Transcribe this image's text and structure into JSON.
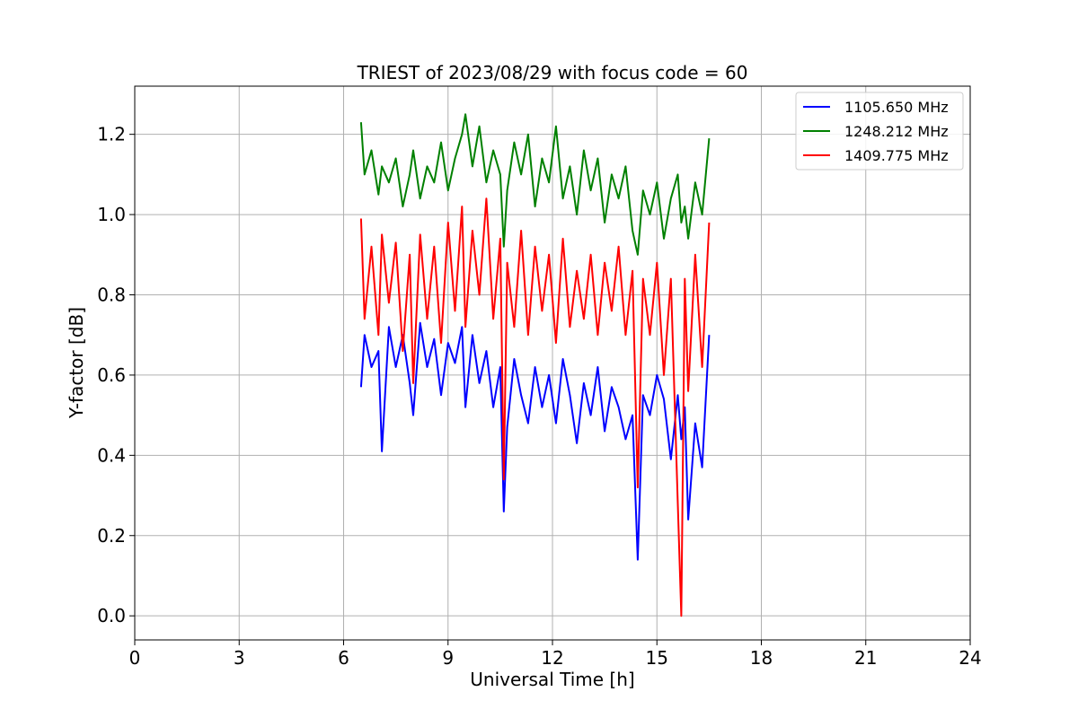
{
  "chart_data": {
    "type": "line",
    "title": "TRIEST of 2023/08/29 with focus code = 60",
    "xlabel": "Universal Time [h]",
    "ylabel": "Y-factor [dB]",
    "xlim": [
      0,
      24
    ],
    "ylim": [
      -0.06,
      1.32
    ],
    "xticks": [
      0,
      3,
      6,
      9,
      12,
      15,
      18,
      21,
      24
    ],
    "xtick_labels": [
      "0",
      "3",
      "6",
      "9",
      "12",
      "15",
      "18",
      "21",
      "24"
    ],
    "yticks": [
      0.0,
      0.2,
      0.4,
      0.6,
      0.8,
      1.0,
      1.2
    ],
    "ytick_labels": [
      "0.0",
      "0.2",
      "0.4",
      "0.6",
      "0.8",
      "1.0",
      "1.2"
    ],
    "grid": true,
    "legend_position": "top-right",
    "series": [
      {
        "name": "1105.650 MHz",
        "color": "#0000ff",
        "x": [
          6.5,
          6.6,
          6.8,
          7.0,
          7.1,
          7.3,
          7.5,
          7.7,
          7.9,
          8.0,
          8.2,
          8.4,
          8.6,
          8.8,
          9.0,
          9.2,
          9.4,
          9.5,
          9.7,
          9.9,
          10.1,
          10.3,
          10.5,
          10.6,
          10.7,
          10.9,
          11.1,
          11.3,
          11.5,
          11.7,
          11.9,
          12.1,
          12.3,
          12.5,
          12.7,
          12.9,
          13.1,
          13.3,
          13.5,
          13.7,
          13.9,
          14.1,
          14.3,
          14.45,
          14.6,
          14.8,
          15.0,
          15.2,
          15.4,
          15.6,
          15.7,
          15.8,
          15.9,
          16.1,
          16.3,
          16.5
        ],
        "y": [
          0.57,
          0.7,
          0.62,
          0.66,
          0.41,
          0.72,
          0.62,
          0.7,
          0.58,
          0.5,
          0.73,
          0.62,
          0.69,
          0.55,
          0.68,
          0.63,
          0.72,
          0.52,
          0.7,
          0.58,
          0.66,
          0.52,
          0.62,
          0.26,
          0.47,
          0.64,
          0.55,
          0.48,
          0.62,
          0.52,
          0.6,
          0.48,
          0.64,
          0.55,
          0.43,
          0.58,
          0.5,
          0.62,
          0.46,
          0.57,
          0.52,
          0.44,
          0.5,
          0.14,
          0.55,
          0.5,
          0.6,
          0.54,
          0.39,
          0.55,
          0.44,
          0.52,
          0.24,
          0.48,
          0.37,
          0.7
        ]
      },
      {
        "name": "1248.212 MHz",
        "color": "#008000",
        "x": [
          6.5,
          6.6,
          6.8,
          7.0,
          7.1,
          7.3,
          7.5,
          7.7,
          7.9,
          8.0,
          8.2,
          8.4,
          8.6,
          8.8,
          9.0,
          9.2,
          9.4,
          9.5,
          9.7,
          9.9,
          10.1,
          10.3,
          10.5,
          10.6,
          10.7,
          10.9,
          11.1,
          11.3,
          11.5,
          11.7,
          11.9,
          12.1,
          12.3,
          12.5,
          12.7,
          12.9,
          13.1,
          13.3,
          13.5,
          13.7,
          13.9,
          14.1,
          14.3,
          14.45,
          14.6,
          14.8,
          15.0,
          15.2,
          15.4,
          15.6,
          15.7,
          15.8,
          15.9,
          16.1,
          16.3,
          16.5
        ],
        "y": [
          1.23,
          1.1,
          1.16,
          1.05,
          1.12,
          1.08,
          1.14,
          1.02,
          1.1,
          1.16,
          1.04,
          1.12,
          1.08,
          1.18,
          1.06,
          1.14,
          1.2,
          1.25,
          1.12,
          1.22,
          1.08,
          1.16,
          1.1,
          0.92,
          1.06,
          1.18,
          1.1,
          1.2,
          1.02,
          1.14,
          1.08,
          1.22,
          1.04,
          1.12,
          1.0,
          1.16,
          1.06,
          1.14,
          0.98,
          1.1,
          1.04,
          1.12,
          0.96,
          0.9,
          1.06,
          1.0,
          1.08,
          0.94,
          1.04,
          1.1,
          0.98,
          1.02,
          0.94,
          1.08,
          1.0,
          1.19
        ]
      },
      {
        "name": "1409.775 MHz",
        "color": "#ff0000",
        "x": [
          6.5,
          6.6,
          6.8,
          7.0,
          7.1,
          7.3,
          7.5,
          7.7,
          7.9,
          8.0,
          8.2,
          8.4,
          8.6,
          8.8,
          9.0,
          9.2,
          9.4,
          9.5,
          9.7,
          9.9,
          10.1,
          10.3,
          10.5,
          10.6,
          10.7,
          10.9,
          11.1,
          11.3,
          11.5,
          11.7,
          11.9,
          12.1,
          12.3,
          12.5,
          12.7,
          12.9,
          13.1,
          13.3,
          13.5,
          13.7,
          13.9,
          14.1,
          14.3,
          14.45,
          14.6,
          14.8,
          15.0,
          15.2,
          15.4,
          15.6,
          15.7,
          15.8,
          15.9,
          16.1,
          16.3,
          16.5
        ],
        "y": [
          0.99,
          0.74,
          0.92,
          0.7,
          0.95,
          0.78,
          0.93,
          0.66,
          0.9,
          0.58,
          0.95,
          0.74,
          0.92,
          0.68,
          0.98,
          0.76,
          1.02,
          0.72,
          0.96,
          0.8,
          1.04,
          0.74,
          0.94,
          0.34,
          0.88,
          0.72,
          0.96,
          0.7,
          0.92,
          0.76,
          0.9,
          0.68,
          0.94,
          0.72,
          0.86,
          0.74,
          0.9,
          0.7,
          0.88,
          0.76,
          0.92,
          0.7,
          0.86,
          0.32,
          0.84,
          0.7,
          0.88,
          0.6,
          0.84,
          0.28,
          0.0,
          0.84,
          0.56,
          0.9,
          0.62,
          0.98
        ]
      }
    ]
  }
}
